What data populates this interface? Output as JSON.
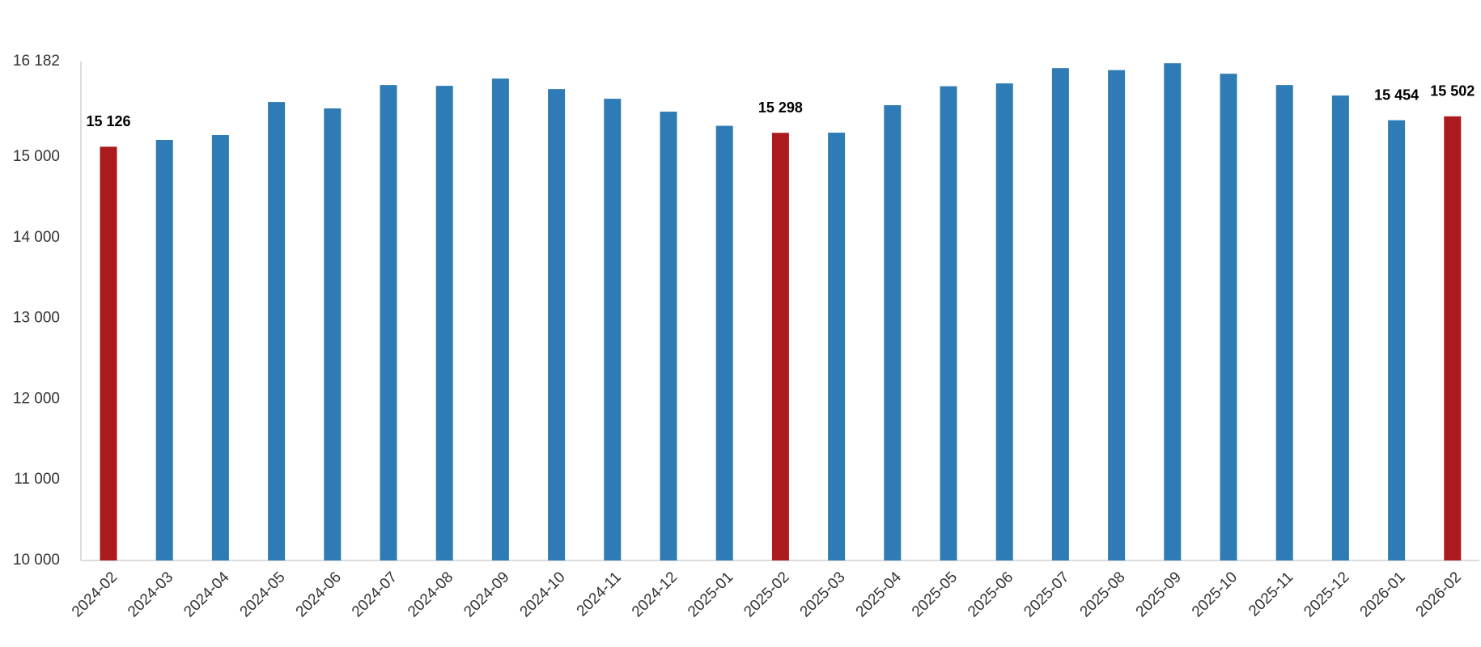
{
  "chart_data": {
    "type": "bar",
    "categories": [
      "2024-02",
      "2024-03",
      "2024-04",
      "2024-05",
      "2024-06",
      "2024-07",
      "2024-08",
      "2024-09",
      "2024-10",
      "2024-11",
      "2024-12",
      "2025-01",
      "2025-02",
      "2025-03",
      "2025-04",
      "2025-05",
      "2025-06",
      "2025-07",
      "2025-08",
      "2025-09",
      "2025-10",
      "2025-11",
      "2025-12",
      "2026-01",
      "2026-02"
    ],
    "values": [
      15126,
      15210,
      15270,
      15680,
      15600,
      15890,
      15880,
      15970,
      15840,
      15720,
      15560,
      15385,
      15298,
      15300,
      15640,
      15875,
      15910,
      16100,
      16075,
      16160,
      16030,
      15890,
      15760,
      15454,
      15502
    ],
    "value_labels": [
      "15 126",
      null,
      null,
      null,
      null,
      null,
      null,
      null,
      null,
      null,
      null,
      null,
      "15 298",
      null,
      null,
      null,
      null,
      null,
      null,
      null,
      null,
      null,
      null,
      "15 454",
      "15 502"
    ],
    "colors": [
      "#ab1a1d",
      "#2e7bb6",
      "#2e7bb6",
      "#2e7bb6",
      "#2e7bb6",
      "#2e7bb6",
      "#2e7bb6",
      "#2e7bb6",
      "#2e7bb6",
      "#2e7bb6",
      "#2e7bb6",
      "#2e7bb6",
      "#ab1a1d",
      "#2e7bb6",
      "#2e7bb6",
      "#2e7bb6",
      "#2e7bb6",
      "#2e7bb6",
      "#2e7bb6",
      "#2e7bb6",
      "#2e7bb6",
      "#2e7bb6",
      "#2e7bb6",
      "#2e7bb6",
      "#ab1a1d"
    ],
    "ylim": [
      10000,
      16182
    ],
    "yticks": [
      {
        "value": 10000,
        "label": "10 000"
      },
      {
        "value": 11000,
        "label": "11 000"
      },
      {
        "value": 12000,
        "label": "12 000"
      },
      {
        "value": 13000,
        "label": "13 000"
      },
      {
        "value": 14000,
        "label": "14 000"
      },
      {
        "value": 15000,
        "label": "15 000"
      },
      {
        "value": 16182,
        "label": "16 182"
      }
    ],
    "grid": false
  }
}
